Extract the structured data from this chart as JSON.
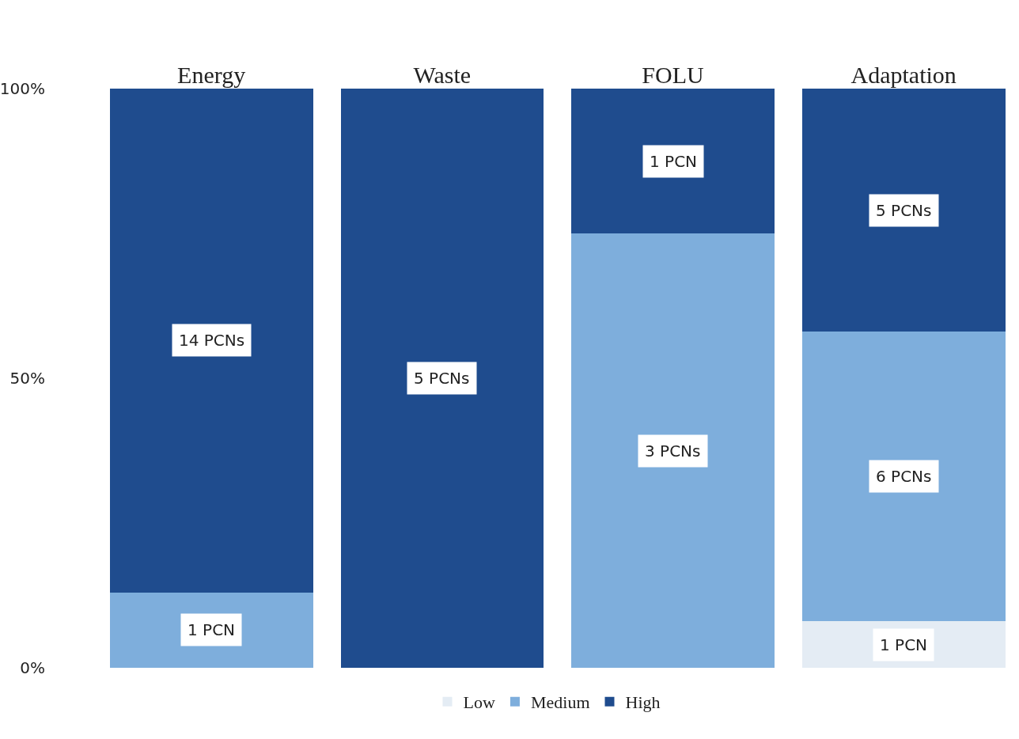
{
  "chart_data": {
    "type": "bar",
    "stacked": true,
    "categories": [
      "Energy",
      "Waste",
      "FOLU",
      "Adaptation"
    ],
    "series": [
      {
        "name": "Low",
        "color": "#e4ecf4",
        "values": [
          null,
          null,
          null,
          8
        ]
      },
      {
        "name": "Medium",
        "color": "#7eaedc",
        "values": [
          13,
          null,
          75,
          50
        ]
      },
      {
        "name": "High",
        "color": "#1f4c8e",
        "values": [
          87,
          100,
          25,
          42
        ]
      }
    ],
    "annotations": [
      "1 PCN",
      "14 PCNs",
      "5 PCNs",
      "3 PCNs",
      "1 PCN",
      "1 PCN",
      "6 PCNs",
      "5 PCNs"
    ],
    "ylim": [
      0,
      100
    ],
    "yticks": [
      {
        "value": 0,
        "label": "0%"
      },
      {
        "value": 50,
        "label": "50%"
      },
      {
        "value": 100,
        "label": "100%"
      }
    ],
    "legend": "bottom"
  }
}
